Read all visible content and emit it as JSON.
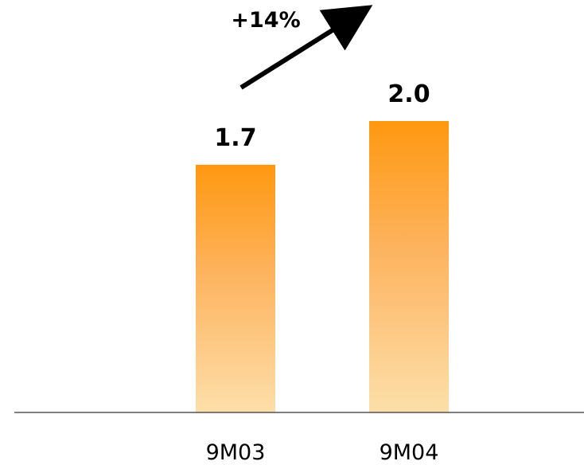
{
  "chart_data": {
    "type": "bar",
    "categories": [
      "9M03",
      "9M04"
    ],
    "values": [
      1.7,
      2.0
    ],
    "value_labels": [
      "1.7",
      "2.0"
    ],
    "title": "",
    "xlabel": "",
    "ylabel": "",
    "ylim": [
      0,
      2.3
    ],
    "grid": false,
    "legend": "none",
    "annotation": {
      "text": "+14%",
      "type": "growth-arrow"
    },
    "colors": {
      "bar_top": "#ff9810",
      "bar_bottom": "#fddfaa",
      "baseline": "#555555",
      "arrow": "#000000"
    }
  }
}
